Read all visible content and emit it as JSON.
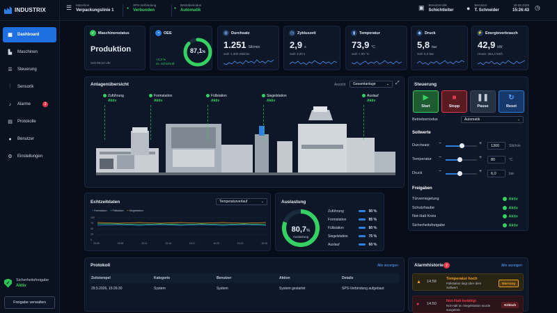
{
  "app": {
    "name": "INDUSTRIX"
  },
  "header": {
    "machine_label": "Maschine",
    "machine_value": "Verpackungslinie 1",
    "plc_label": "SPS-Verbindung",
    "plc_value": "Verbunden",
    "mode_label": "Betriebsmodus",
    "mode_value": "Automatik",
    "role_label": "Benutzerrolle",
    "role_value": "Schichtleiter",
    "user_label": "Benutzer",
    "user_value": "T. Schneider",
    "date": "29.05.2026",
    "time": "15:26:43"
  },
  "sidebar": {
    "items": [
      {
        "label": "Dashboard",
        "icon": "grid-icon"
      },
      {
        "label": "Maschinen",
        "icon": "factory-icon"
      },
      {
        "label": "Steuerung",
        "icon": "sliders-icon"
      },
      {
        "label": "Sensorik",
        "icon": "sensor-icon"
      },
      {
        "label": "Alarme",
        "icon": "bell-icon",
        "badge": "2"
      },
      {
        "label": "Protokolle",
        "icon": "document-icon"
      },
      {
        "label": "Benutzer",
        "icon": "users-icon"
      },
      {
        "label": "Einstellungen",
        "icon": "gear-icon"
      }
    ],
    "safety_label": "Sicherheitsfreigabe",
    "safety_value": "Aktiv",
    "release_button": "Freigabe verwalten"
  },
  "kpis": {
    "status": {
      "title": "Maschinenstatus",
      "value": "Produktion",
      "sub": "Seit 09:14 Uhr"
    },
    "oee": {
      "title": "OEE",
      "value": "87,1",
      "unit": "%",
      "fraction": 0.871,
      "delta": "+2,3 %",
      "delta_sub": "vs. Schicht Ø"
    },
    "throughput": {
      "title": "Durchsatz",
      "value": "1.251",
      "unit": "Stk/min",
      "sub": "Soll: 1.300 Stk/min"
    },
    "cycle": {
      "title": "Zykluszeit",
      "value": "2,9",
      "unit": "s",
      "sub": "Soll: 3,00 s"
    },
    "temperature": {
      "title": "Temperatur",
      "value": "73,9",
      "unit": "°C",
      "sub": "Soll: < 80 °C"
    },
    "pressure": {
      "title": "Druck",
      "value": "5,8",
      "unit": "bar",
      "sub": "Soll: 6,0 bar"
    },
    "energy": {
      "title": "Energieverbrauch",
      "value": "42,9",
      "unit": "kW",
      "sub": "Heute: 284,3 kWh"
    }
  },
  "overview": {
    "title": "Anlagenübersicht",
    "view_label": "Ansicht",
    "view_value": "Gesamtanlage",
    "stations": [
      {
        "name": "Zuführung",
        "status": "Aktiv"
      },
      {
        "name": "Formstation",
        "status": "Aktiv"
      },
      {
        "name": "Füllstation",
        "status": "Aktiv"
      },
      {
        "name": "Siegelstation",
        "status": "Aktiv"
      },
      {
        "name": "Auslauf",
        "status": "Aktiv"
      }
    ]
  },
  "control": {
    "title": "Steuerung",
    "start": "Start",
    "stop": "Stopp",
    "pause": "Pause",
    "reset": "Reset",
    "mode_label": "Betriebsmodus",
    "mode_value": "Automatik",
    "setpoints_title": "Sollwerte",
    "setpoints": [
      {
        "label": "Durchsatz",
        "value": "1300",
        "unit": "Stk/min",
        "level": 0.5
      },
      {
        "label": "Temperatur",
        "value": "80",
        "unit": "°C",
        "level": 0.45
      },
      {
        "label": "Druck",
        "value": "6,0",
        "unit": "bar",
        "level": 0.45
      }
    ],
    "releases_title": "Freigaben",
    "releases": [
      {
        "label": "Türverriegelung",
        "status": "Aktiv"
      },
      {
        "label": "Schutzhaube",
        "status": "Aktiv"
      },
      {
        "label": "Not-Halt Kreis",
        "status": "Aktiv"
      },
      {
        "label": "Sicherheitsfreigabe",
        "status": "Aktiv"
      }
    ]
  },
  "realtime": {
    "title": "Echtzeitdaten",
    "select": "Temperaturverlauf",
    "legend": [
      "Formstation",
      "Füllstation",
      "Siegelstation"
    ],
    "yticks": [
      "100",
      "75",
      "50",
      "25",
      "0"
    ],
    "xticks": [
      "15:05",
      "15:08",
      "15:11",
      "15:14",
      "15:17",
      "15:20",
      "15:23",
      "15:26"
    ]
  },
  "utilization": {
    "title": "Auslastung",
    "value": "80,7",
    "unit": "%",
    "label": "Auslastung",
    "fraction": 0.807,
    "rows": [
      {
        "label": "Zuführung",
        "pct": "90 %"
      },
      {
        "label": "Formstation",
        "pct": "85 %"
      },
      {
        "label": "Füllstation",
        "pct": "80 %"
      },
      {
        "label": "Siegelstation",
        "pct": "75 %"
      },
      {
        "label": "Auslauf",
        "pct": "60 %"
      }
    ]
  },
  "log": {
    "title": "Protokoll",
    "show_all": "Alle anzeigen",
    "columns": [
      "Zeitstempel",
      "Kategorie",
      "Benutzer",
      "Aktion",
      "Details"
    ],
    "rows": [
      [
        "29.5.2026, 15:26:30",
        "System",
        "System",
        "System gestartet",
        "SPS-Verbindung aufgebaut"
      ]
    ]
  },
  "alarms": {
    "title": "Alarmhistorie",
    "badge": "2",
    "show_all": "Alle anzeigen",
    "items": [
      {
        "time": "14:58",
        "title": "Temperatur hoch",
        "desc": "Füllstation liegt über dem Sollwert.",
        "tag": "Warnung",
        "color": "#f0a020"
      },
      {
        "time": "14:50",
        "title": "Not-Halt betätigt",
        "desc": "Not-Halt an Siegelstation wurde ausgelöst.",
        "tag": "Kritisch",
        "color": "#e03a4a"
      }
    ]
  },
  "colors": {
    "accent": "#1e6fe0",
    "ok": "#35d163",
    "warn": "#f0a020",
    "crit": "#e03a4a"
  }
}
